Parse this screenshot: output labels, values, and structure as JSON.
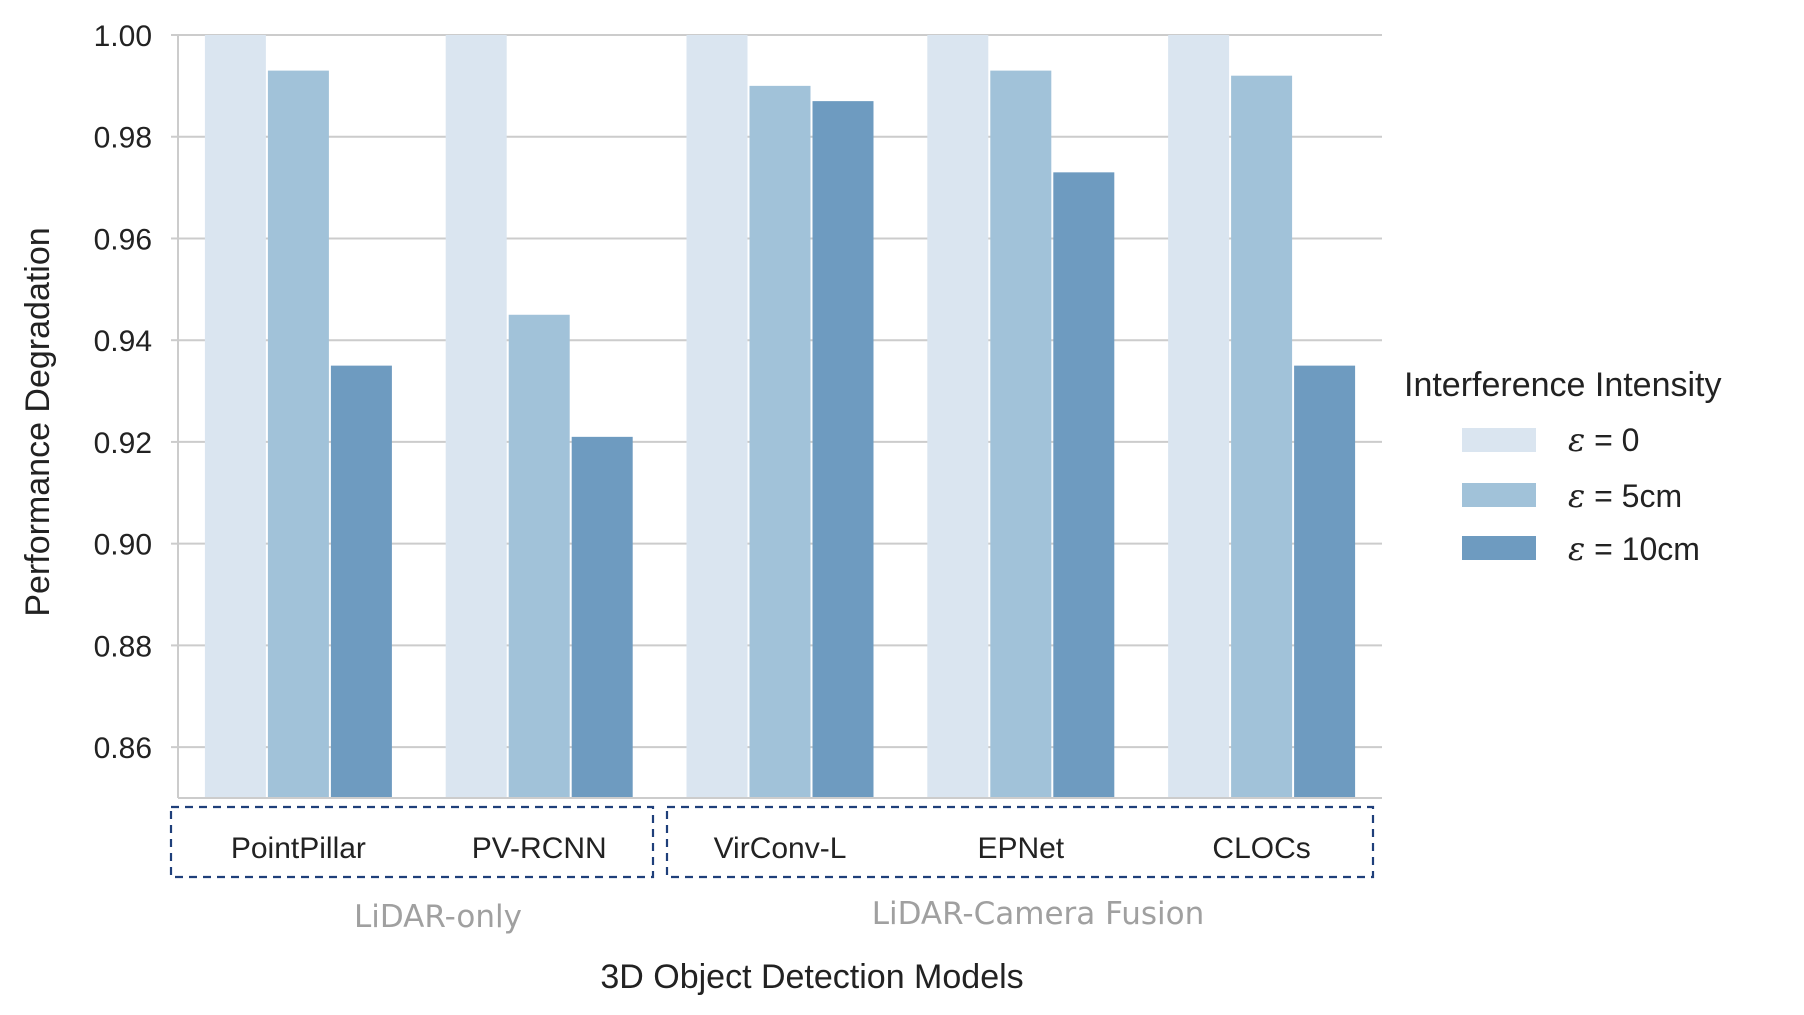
{
  "chart_data": {
    "type": "bar",
    "title": "",
    "xlabel": "3D Object Detection Models",
    "ylabel": "Performance Degradation",
    "ylim": [
      0.85,
      1.0
    ],
    "yticks": [
      "0.86",
      "0.88",
      "0.90",
      "0.92",
      "0.94",
      "0.96",
      "0.98",
      "1.00"
    ],
    "ytick_values": [
      0.86,
      0.88,
      0.9,
      0.92,
      0.94,
      0.96,
      0.98,
      1.0
    ],
    "grid": true,
    "categories": [
      "PointPillar",
      "PV-RCNN",
      "VirConv-L",
      "EPNet",
      "CLOCs"
    ],
    "category_groups": [
      {
        "label": "LiDAR-only",
        "members": [
          "PointPillar",
          "PV-RCNN"
        ]
      },
      {
        "label": "LiDAR-Camera Fusion",
        "members": [
          "VirConv-L",
          "EPNet",
          "CLOCs"
        ]
      }
    ],
    "legend": {
      "title": "Interference Intensity",
      "placement": "right",
      "entries": [
        {
          "symbol": "ε",
          "text": " = 0"
        },
        {
          "symbol": "ε",
          "text": " = 5cm"
        },
        {
          "symbol": "ε",
          "text": " = 10cm"
        }
      ]
    },
    "series": [
      {
        "name": "ε = 0",
        "color": "#dae5f0",
        "values": [
          1.0,
          1.0,
          1.0,
          1.0,
          1.0
        ]
      },
      {
        "name": "ε = 5cm",
        "color": "#a1c2d9",
        "values": [
          0.993,
          0.945,
          0.99,
          0.993,
          0.992
        ]
      },
      {
        "name": "ε = 10cm",
        "color": "#6e9bc0",
        "values": [
          0.935,
          0.921,
          0.987,
          0.973,
          0.935
        ]
      }
    ]
  }
}
